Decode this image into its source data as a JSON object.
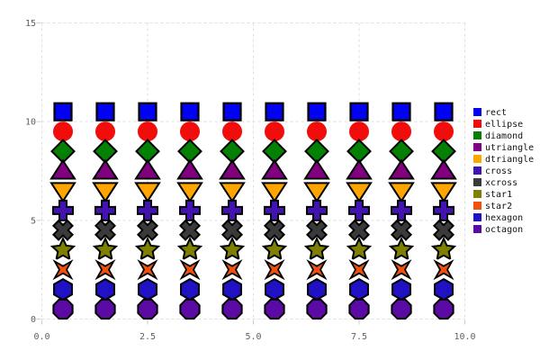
{
  "chart_data": {
    "type": "scatter",
    "title": "",
    "xlabel": "",
    "ylabel": "",
    "xlim": [
      0,
      10
    ],
    "ylim": [
      0,
      15
    ],
    "grid": "dashed",
    "legend_position": "right-center",
    "x": [
      0.5,
      1.5,
      2.5,
      3.5,
      4.5,
      5.5,
      6.5,
      7.5,
      8.5,
      9.5
    ],
    "series": [
      {
        "name": "rect",
        "shape": "rect",
        "color": "#0202f2",
        "values": [
          10.5,
          10.5,
          10.5,
          10.5,
          10.5,
          10.5,
          10.5,
          10.5,
          10.5,
          10.5
        ]
      },
      {
        "name": "ellipse",
        "shape": "ellipse",
        "color": "#f20d0d",
        "values": [
          9.5,
          9.5,
          9.5,
          9.5,
          9.5,
          9.5,
          9.5,
          9.5,
          9.5,
          9.5
        ]
      },
      {
        "name": "diamond",
        "shape": "diamond",
        "color": "#048104",
        "values": [
          8.5,
          8.5,
          8.5,
          8.5,
          8.5,
          8.5,
          8.5,
          8.5,
          8.5,
          8.5
        ]
      },
      {
        "name": "utriangle",
        "shape": "utriangle",
        "color": "#800080",
        "values": [
          7.5,
          7.5,
          7.5,
          7.5,
          7.5,
          7.5,
          7.5,
          7.5,
          7.5,
          7.5
        ]
      },
      {
        "name": "dtriangle",
        "shape": "dtriangle",
        "color": "#ffa500",
        "values": [
          6.5,
          6.5,
          6.5,
          6.5,
          6.5,
          6.5,
          6.5,
          6.5,
          6.5,
          6.5
        ]
      },
      {
        "name": "cross",
        "shape": "cross",
        "color": "#4213b2",
        "values": [
          5.5,
          5.5,
          5.5,
          5.5,
          5.5,
          5.5,
          5.5,
          5.5,
          5.5,
          5.5
        ]
      },
      {
        "name": "xcross",
        "shape": "xcross",
        "color": "#3a3a3a",
        "values": [
          4.5,
          4.5,
          4.5,
          4.5,
          4.5,
          4.5,
          4.5,
          4.5,
          4.5,
          4.5
        ]
      },
      {
        "name": "star1",
        "shape": "star1",
        "color": "#808000",
        "values": [
          3.5,
          3.5,
          3.5,
          3.5,
          3.5,
          3.5,
          3.5,
          3.5,
          3.5,
          3.5
        ]
      },
      {
        "name": "star2",
        "shape": "star2",
        "color": "#f1500e",
        "values": [
          2.5,
          2.5,
          2.5,
          2.5,
          2.5,
          2.5,
          2.5,
          2.5,
          2.5,
          2.5
        ]
      },
      {
        "name": "hexagon",
        "shape": "hexagon",
        "color": "#2012c4",
        "values": [
          1.5,
          1.5,
          1.5,
          1.5,
          1.5,
          1.5,
          1.5,
          1.5,
          1.5,
          1.5
        ]
      },
      {
        "name": "octagon",
        "shape": "octagon",
        "color": "#5b0ba4",
        "values": [
          0.5,
          0.5,
          0.5,
          0.5,
          0.5,
          0.5,
          0.5,
          0.5,
          0.5,
          0.5
        ]
      }
    ],
    "x_ticks": [
      {
        "value": 0,
        "label": "0.0"
      },
      {
        "value": 2.5,
        "label": "2.5"
      },
      {
        "value": 5,
        "label": "5.0"
      },
      {
        "value": 7.5,
        "label": "7.5"
      },
      {
        "value": 10,
        "label": "10.0"
      }
    ],
    "y_ticks": [
      {
        "value": 0,
        "label": "0"
      },
      {
        "value": 5,
        "label": "5"
      },
      {
        "value": 10,
        "label": "10"
      },
      {
        "value": 15,
        "label": "15"
      }
    ],
    "colors": {
      "background": "#ffffff",
      "grid": "#dedede",
      "tick": "#cccccc",
      "tick_label": "#5f5f5f",
      "legend_text": "#141414",
      "marker_outline": "#000000",
      "star2_halo": "#ffffff"
    }
  }
}
